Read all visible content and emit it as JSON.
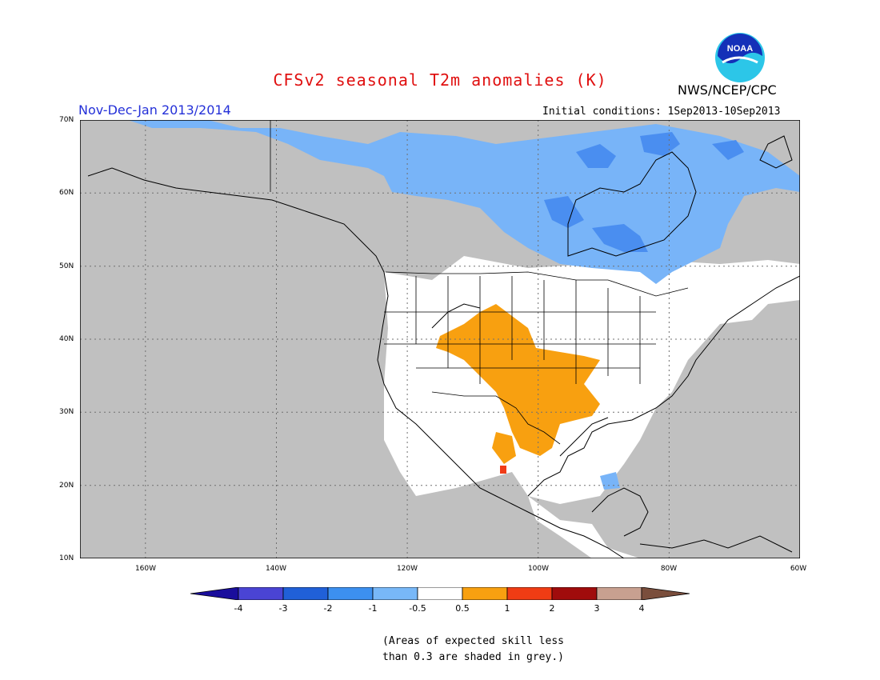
{
  "header": {
    "title": "CFSv2 seasonal T2m anomalies (K)",
    "agency": "NWS/NCEP/CPC",
    "period": "Nov-Dec-Jan 2013/2014",
    "initial_conditions": "Initial conditions: 1Sep2013-10Sep2013",
    "logo_text": "NOAA"
  },
  "map": {
    "projection": "lat-lon",
    "lon_range": [
      -170,
      -60
    ],
    "lat_range": [
      10,
      70
    ],
    "lat_labels": [
      "70N",
      "60N",
      "50N",
      "40N",
      "30N",
      "20N",
      "10N"
    ],
    "lon_labels": [
      "160W",
      "140W",
      "120W",
      "100W",
      "80W",
      "60W"
    ],
    "grid": "dotted",
    "colors": {
      "grey_low_skill": "#c0c0c0",
      "neutral": "#ffffff",
      "cool_-1_-0.5": "#78b4f8",
      "cool_-2_-1": "#4a8ef0",
      "warm_0.5_1": "#f8a010",
      "warm_1_2": "#f03c18"
    }
  },
  "colorbar": {
    "labels": [
      "-4",
      "-3",
      "-2",
      "-1",
      "-0.5",
      "0.5",
      "1",
      "2",
      "3",
      "4"
    ],
    "colors": [
      "#1a0e9c",
      "#4a44d4",
      "#2060d8",
      "#3c90f0",
      "#78b8f8",
      "#ffffff",
      "#f8a010",
      "#f03c14",
      "#a00c0c",
      "#c8a090",
      "#7a4e3c"
    ]
  },
  "note": {
    "line1": "(Areas of expected skill less",
    "line2": "than 0.3 are shaded in grey.)"
  }
}
